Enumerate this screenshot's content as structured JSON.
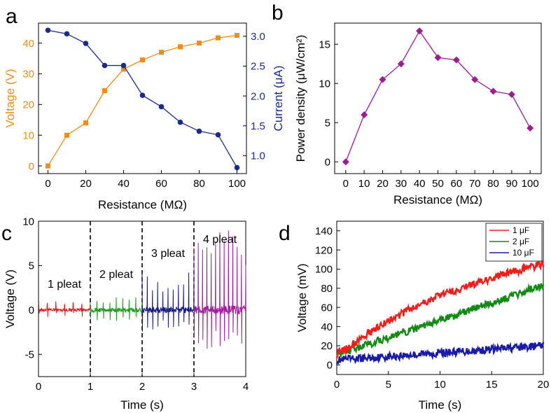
{
  "chart_data": [
    {
      "panel": "a",
      "type": "line",
      "xlabel": "Resistance (MΩ)",
      "xlim": [
        -5,
        105
      ],
      "xticks": [
        0,
        20,
        40,
        60,
        80,
        100
      ],
      "series": [
        {
          "name": "Voltage",
          "axis": "left",
          "ylabel": "Voltage (V)",
          "color": "#f08c1c",
          "marker": "square",
          "ylim": [
            -2.5,
            46.5
          ],
          "yticks": [
            0,
            10,
            20,
            30,
            40
          ],
          "x": [
            0,
            10,
            20,
            30,
            40,
            50,
            60,
            70,
            80,
            90,
            100
          ],
          "values": [
            0,
            10,
            14,
            24.5,
            31.5,
            34.5,
            37,
            38.8,
            40,
            41.7,
            42.5
          ]
        },
        {
          "name": "Current",
          "axis": "right",
          "ylabel": "Current (μA)",
          "color": "#1a2a8a",
          "marker": "circle",
          "ylim": [
            0.7,
            3.22
          ],
          "yticks": [
            "1.0",
            "1.5",
            "2.0",
            "2.5",
            "3.0"
          ],
          "x": [
            0,
            10,
            20,
            30,
            40,
            50,
            60,
            70,
            80,
            90,
            100
          ],
          "values": [
            3.1,
            3.04,
            2.88,
            2.51,
            2.51,
            2.01,
            1.82,
            1.56,
            1.41,
            1.35,
            0.8
          ]
        }
      ]
    },
    {
      "panel": "b",
      "type": "line",
      "xlabel": "Resistance (MΩ)",
      "ylabel": "Power density (μW/cm²)",
      "color": "#9b1d8e",
      "marker": "diamond",
      "xlim": [
        -6,
        106
      ],
      "ylim": [
        -1.5,
        17.7
      ],
      "xticks": [
        0,
        10,
        20,
        30,
        40,
        50,
        60,
        70,
        80,
        90,
        100
      ],
      "yticks": [
        0,
        5,
        10,
        15
      ],
      "x": [
        0,
        10,
        20,
        30,
        40,
        50,
        60,
        70,
        80,
        90,
        100
      ],
      "values": [
        0,
        6,
        10.5,
        12.5,
        16.7,
        13.3,
        13,
        10.5,
        9,
        8.6,
        4.3
      ]
    },
    {
      "panel": "c",
      "type": "line",
      "xlabel": "Time (s)",
      "ylabel": "Voltage (V)",
      "xlim": [
        0,
        4
      ],
      "ylim": [
        -7.5,
        10
      ],
      "xticks": [
        0,
        1,
        2,
        3,
        4
      ],
      "yticks": [
        -5,
        0,
        5,
        10
      ],
      "dividers": [
        1,
        2,
        3
      ],
      "segments": [
        {
          "label": "1 pleat",
          "t_start": 0,
          "t_end": 1,
          "color": "#e41a1c",
          "peak_max": 1.0,
          "peak_min": -0.8,
          "baseline_noise": 0.18
        },
        {
          "label": "2 pleat",
          "t_start": 1,
          "t_end": 2,
          "color": "#1f9a1f",
          "peak_max": 1.5,
          "peak_min": -1.4,
          "baseline_noise": 0.25
        },
        {
          "label": "3 pleat",
          "t_start": 2,
          "t_end": 3,
          "color": "#1a1a8c",
          "peak_max": 4.5,
          "peak_min": -2.5,
          "baseline_noise": 0.35
        },
        {
          "label": "4 pleat",
          "t_start": 3,
          "t_end": 4,
          "color": "#a0219a",
          "peak_max": 9.0,
          "peak_min": -4.7,
          "baseline_noise": 0.5
        }
      ]
    },
    {
      "panel": "d",
      "type": "line",
      "xlabel": "Time (s)",
      "ylabel": "Voltage (mV)",
      "xlim": [
        0,
        20
      ],
      "ylim": [
        -10,
        150
      ],
      "xticks": [
        0,
        5,
        10,
        15,
        20
      ],
      "yticks": [
        0,
        20,
        40,
        60,
        80,
        100,
        120,
        140
      ],
      "legend_position": "top-right",
      "series": [
        {
          "name": "1 μF",
          "color": "#ff1a1a",
          "x": [
            0,
            2,
            4,
            6,
            8,
            10,
            12,
            14,
            16,
            18,
            20
          ],
          "values": [
            11,
            25,
            40,
            52,
            63,
            72,
            80,
            87,
            94,
            100,
            105
          ]
        },
        {
          "name": "2 μF",
          "color": "#138a13",
          "x": [
            0,
            2,
            4,
            6,
            8,
            10,
            12,
            14,
            16,
            18,
            20
          ],
          "values": [
            11,
            18,
            25,
            32,
            39,
            46,
            54,
            61,
            68,
            76,
            83
          ]
        },
        {
          "name": "10 μF",
          "color": "#1a1aa8",
          "x": [
            0,
            2,
            4,
            6,
            8,
            10,
            12,
            14,
            16,
            18,
            20
          ],
          "values": [
            5,
            6.5,
            8,
            9.5,
            11,
            12.5,
            14,
            15.5,
            17,
            18.5,
            20
          ]
        }
      ]
    }
  ],
  "panel_labels": [
    "a",
    "b",
    "c",
    "d"
  ],
  "colors": {
    "axis": "#000000",
    "divider": "#000000"
  }
}
